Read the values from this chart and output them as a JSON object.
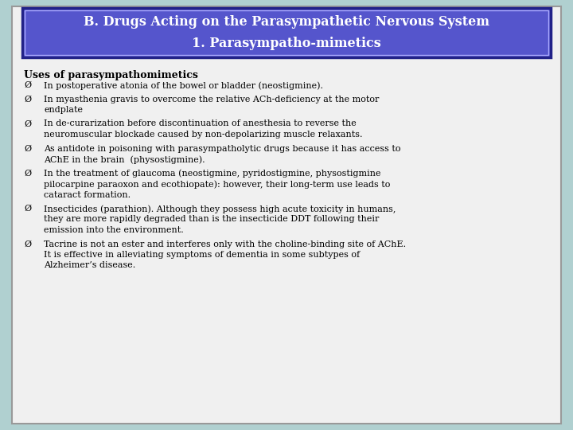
{
  "title_line1": "B. Drugs Acting on the Parasympathetic Nervous System",
  "title_line2": "1. Parasympatho-mimetics",
  "title_bg_color": "#5555cc",
  "title_text_color": "#ffffff",
  "title_border_color": "#222288",
  "outer_bg_color": "#b0d0d0",
  "inner_bg_color": "#e8e8e8",
  "body_bg_color": "#f5f5f5",
  "section_header": "Uses of parasympathomimetics",
  "bullets": [
    "In postoperative atonia of the bowel or bladder (neostigmine).",
    "In myasthenia gravis to overcome the relative ACh-deficiency at the motor\nendplate",
    "In de-curarization before discontinuation of anesthesia to reverse the\nneuromuscular blockade caused by non-depolarizing muscle relaxants.",
    "As antidote in poisoning with parasympatholytic drugs because it has access to\nAChE in the brain  (physostigmine).",
    "In the treatment of glaucoma (neostigmine, pyridostigmine, physostigmine\npilocarpine paraoxon and ecothiopate): however, their long-term use leads to\ncataract formation.",
    "Insecticides (parathion). Although they possess high acute toxicity in humans,\nthey are more rapidly degraded than is the insecticide DDT following their\nemission into the environment.",
    "Tacrine is not an ester and interferes only with the choline-binding site of AChE.\nIt is effective in alleviating symptoms of dementia in some subtypes of\nAlzheimer’s disease."
  ],
  "font_family": "DejaVu Serif",
  "body_font_size": 8.0,
  "header_font_size": 9.0,
  "title_font_size": 11.5
}
